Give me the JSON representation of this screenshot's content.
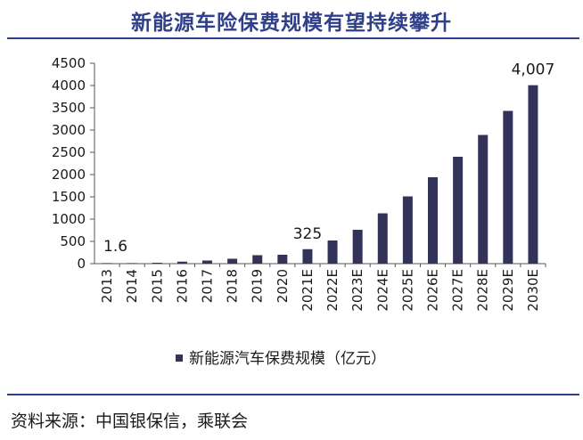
{
  "header": {
    "title": "新能源车险保费规模有望持续攀升"
  },
  "footer": {
    "source": "资料来源：中国银保信，乘联会"
  },
  "colors": {
    "accent": "#2f3f8a",
    "bar": "#33335a"
  },
  "chart_data": {
    "type": "bar",
    "title": "",
    "xlabel": "",
    "ylabel": "",
    "ylim": [
      0,
      4500
    ],
    "yticks": [
      0,
      500,
      1000,
      1500,
      2000,
      2500,
      3000,
      3500,
      4000,
      4500
    ],
    "categories": [
      "2013",
      "2014",
      "2015",
      "2016",
      "2017",
      "2018",
      "2019",
      "2020",
      "2021E",
      "2022E",
      "2023E",
      "2024E",
      "2025E",
      "2026E",
      "2027E",
      "2028E",
      "2029E",
      "2030E"
    ],
    "series": [
      {
        "name": "新能源汽车保费规模（亿元）",
        "values": [
          1.6,
          8,
          20,
          45,
          70,
          110,
          190,
          200,
          325,
          520,
          760,
          1130,
          1510,
          1940,
          2400,
          2890,
          3430,
          4007
        ]
      }
    ],
    "data_labels": [
      {
        "index": 0,
        "text": "1.6"
      },
      {
        "index": 8,
        "text": "325"
      },
      {
        "index": 17,
        "text": "4,007"
      }
    ],
    "legend": {
      "position": "bottom",
      "grid": false
    }
  }
}
